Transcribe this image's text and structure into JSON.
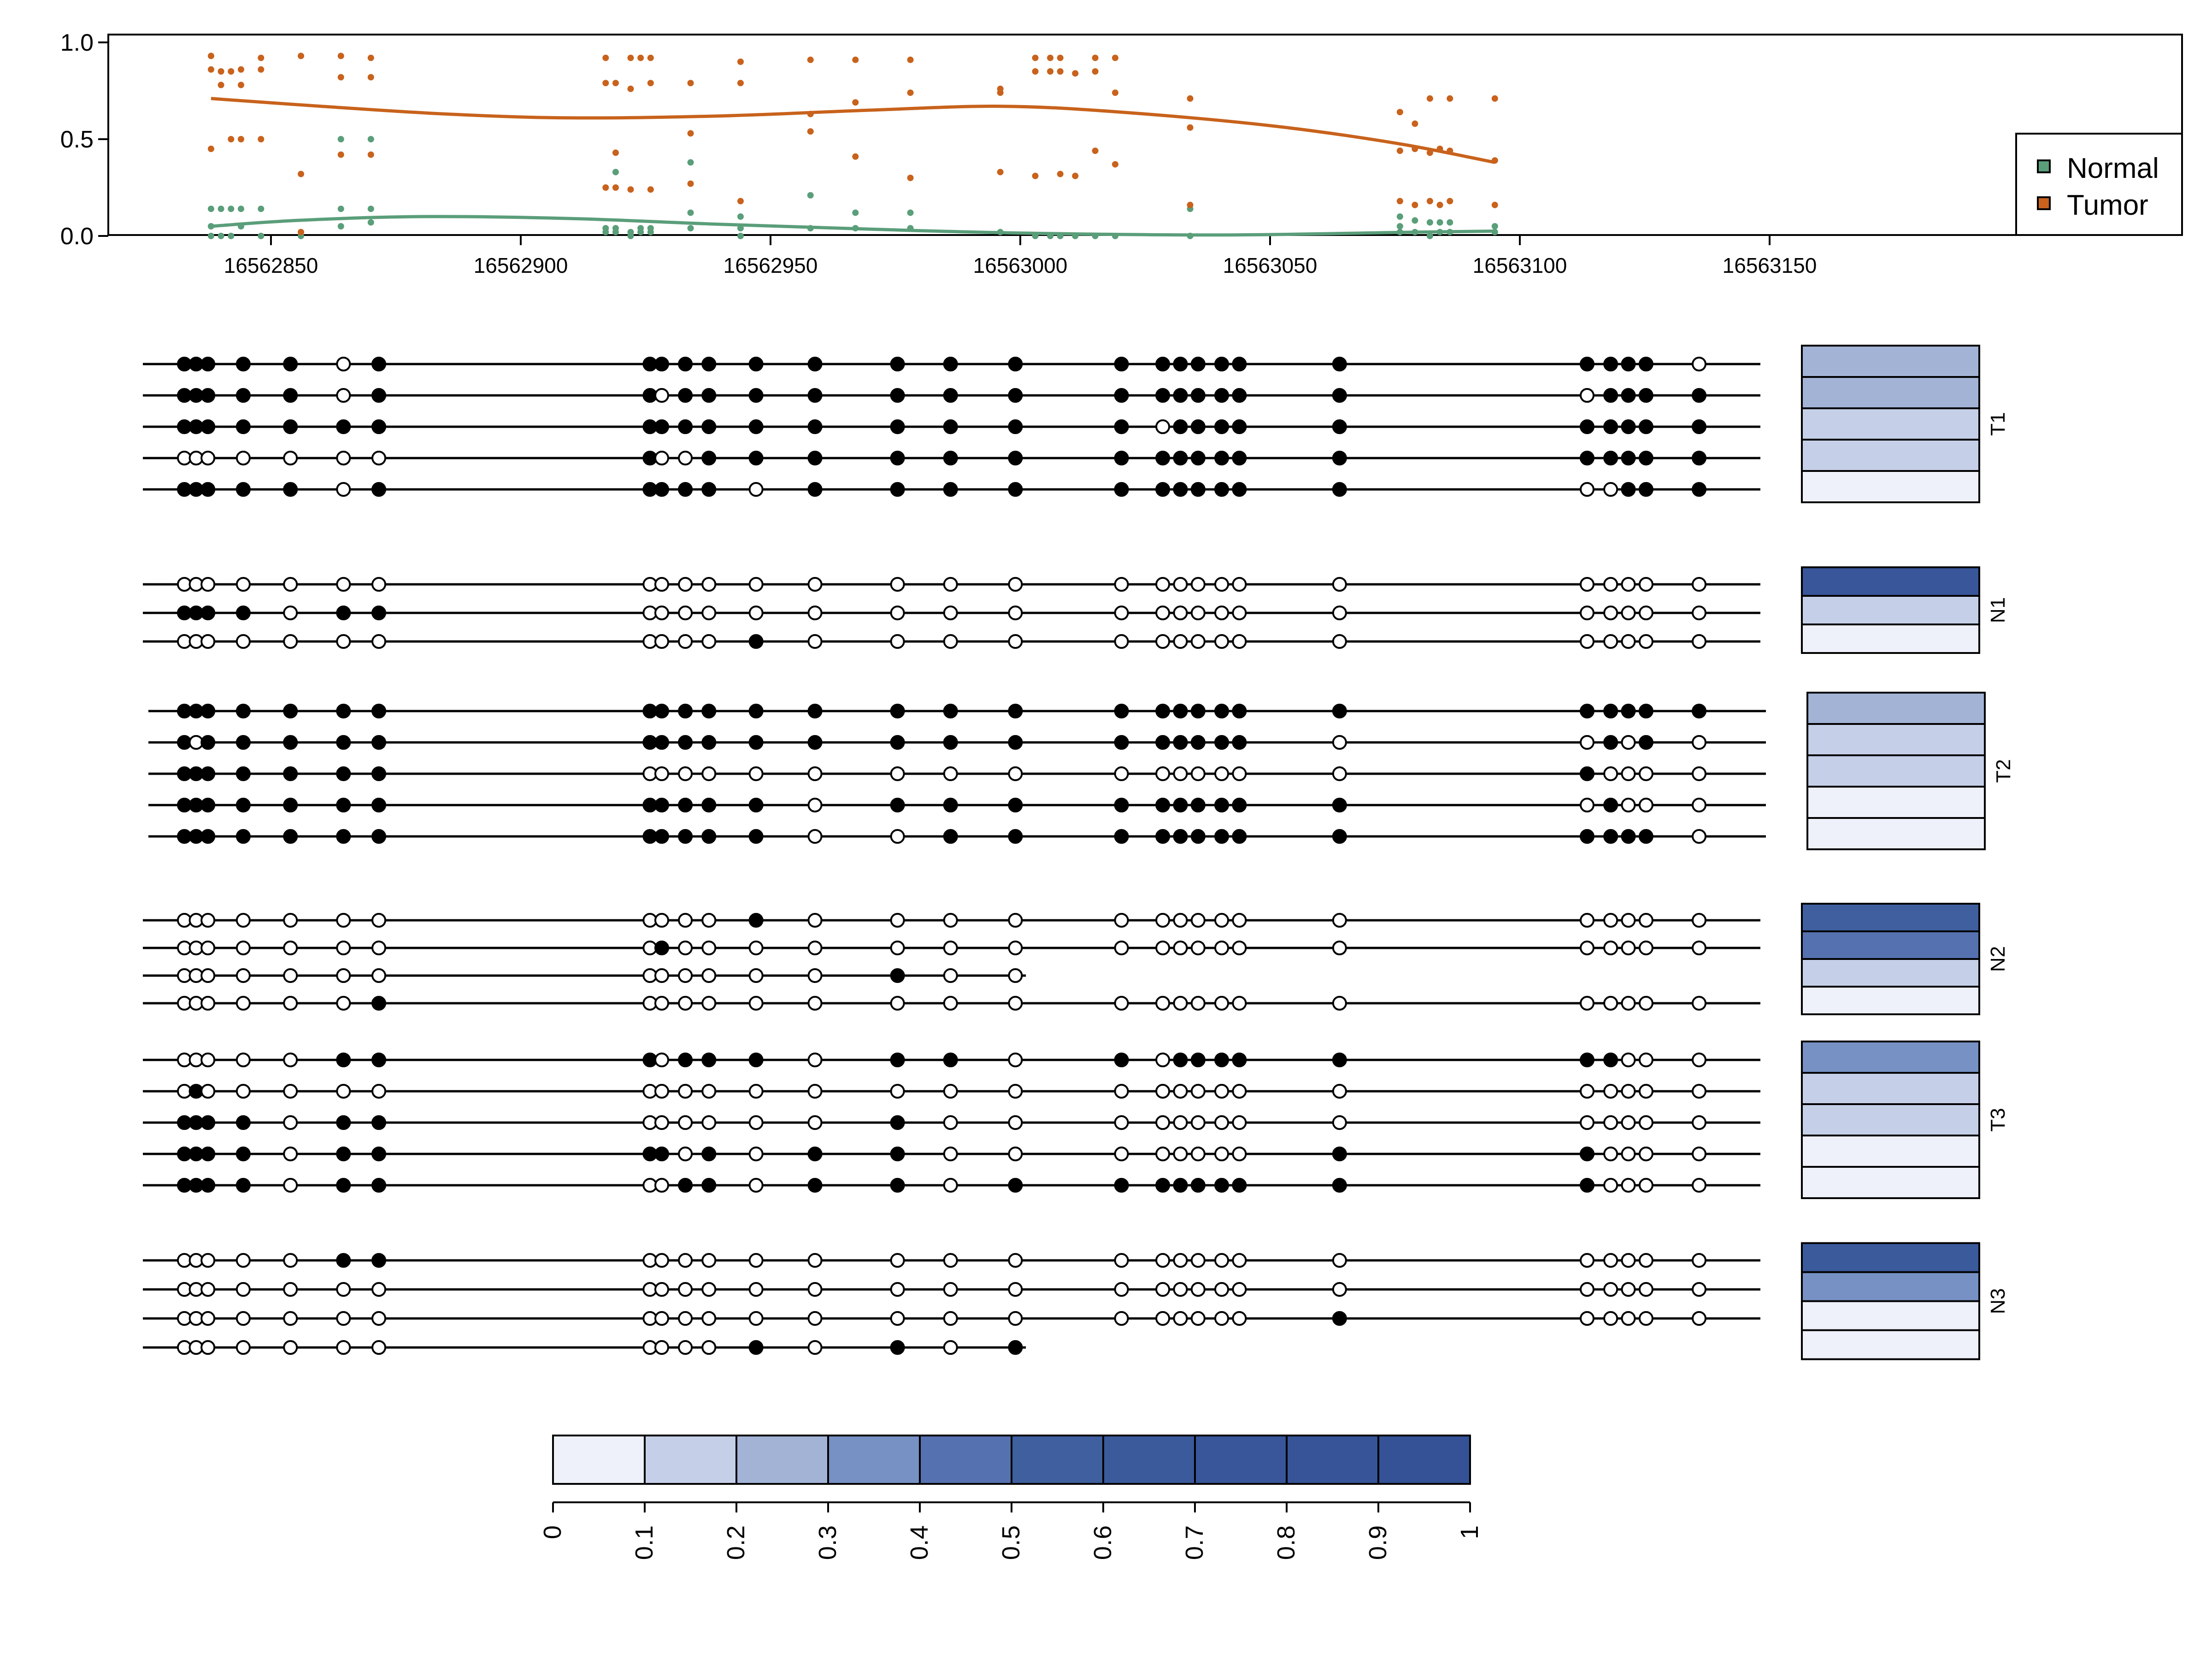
{
  "chart_data": {
    "type": "scatter",
    "description_note": "",
    "top_panel": {
      "xlim": [
        16562820,
        16563170
      ],
      "ylim": [
        0,
        1
      ],
      "xticks": [
        16562850,
        16562900,
        16562950,
        16563000,
        16563050,
        16563100,
        16563150
      ],
      "xtick_labels": [
        "16562850",
        "16562900",
        "16562950",
        "16563000",
        "16563050",
        "16563100",
        "16563150"
      ],
      "yticks": [
        0,
        0.5,
        1
      ],
      "ytick_labels": [
        "0.0",
        "0.5",
        "1.0"
      ],
      "legend_position": "right",
      "series": [
        {
          "name": "Normal",
          "color": "#5a9e7a",
          "points": [
            [
              16562838,
              0.14
            ],
            [
              16562838,
              0.05
            ],
            [
              16562838,
              0.0
            ],
            [
              16562840,
              0.14
            ],
            [
              16562840,
              0.0
            ],
            [
              16562842,
              0.14
            ],
            [
              16562842,
              0.0
            ],
            [
              16562844,
              0.14
            ],
            [
              16562844,
              0.05
            ],
            [
              16562848,
              0.14
            ],
            [
              16562848,
              0.0
            ],
            [
              16562856,
              0.0
            ],
            [
              16562864,
              0.5
            ],
            [
              16562864,
              0.14
            ],
            [
              16562864,
              0.05
            ],
            [
              16562870,
              0.5
            ],
            [
              16562870,
              0.14
            ],
            [
              16562870,
              0.07
            ],
            [
              16562917,
              0.04
            ],
            [
              16562917,
              0.02
            ],
            [
              16562919,
              0.33
            ],
            [
              16562919,
              0.04
            ],
            [
              16562919,
              0.02
            ],
            [
              16562922,
              0.02
            ],
            [
              16562922,
              0.0
            ],
            [
              16562924,
              0.04
            ],
            [
              16562924,
              0.02
            ],
            [
              16562926,
              0.04
            ],
            [
              16562926,
              0.02
            ],
            [
              16562934,
              0.38
            ],
            [
              16562934,
              0.12
            ],
            [
              16562934,
              0.04
            ],
            [
              16562944,
              0.1
            ],
            [
              16562944,
              0.04
            ],
            [
              16562944,
              0.0
            ],
            [
              16562958,
              0.21
            ],
            [
              16562958,
              0.04
            ],
            [
              16562967,
              0.12
            ],
            [
              16562967,
              0.04
            ],
            [
              16562978,
              0.12
            ],
            [
              16562978,
              0.04
            ],
            [
              16562996,
              0.02
            ],
            [
              16563003,
              0.0
            ],
            [
              16563006,
              0.0
            ],
            [
              16563008,
              0.0
            ],
            [
              16563011,
              0.0
            ],
            [
              16563015,
              0.0
            ],
            [
              16563019,
              0.0
            ],
            [
              16563034,
              0.14
            ],
            [
              16563034,
              0.0
            ],
            [
              16563076,
              0.1
            ],
            [
              16563076,
              0.05
            ],
            [
              16563076,
              0.02
            ],
            [
              16563079,
              0.08
            ],
            [
              16563079,
              0.02
            ],
            [
              16563082,
              0.07
            ],
            [
              16563082,
              0.0
            ],
            [
              16563084,
              0.07
            ],
            [
              16563084,
              0.02
            ],
            [
              16563086,
              0.07
            ],
            [
              16563086,
              0.02
            ],
            [
              16563095,
              0.05
            ],
            [
              16563095,
              0.02
            ]
          ],
          "smooth": [
            [
              16562838,
              0.05
            ],
            [
              16562855,
              0.08
            ],
            [
              16562880,
              0.1
            ],
            [
              16562910,
              0.09
            ],
            [
              16562940,
              0.06
            ],
            [
              16562970,
              0.035
            ],
            [
              16563000,
              0.015
            ],
            [
              16563040,
              0.005
            ],
            [
              16563080,
              0.02
            ],
            [
              16563095,
              0.025
            ]
          ]
        },
        {
          "name": "Tumor",
          "color": "#c8621c",
          "points": [
            [
              16562838,
              0.93
            ],
            [
              16562838,
              0.86
            ],
            [
              16562838,
              0.45
            ],
            [
              16562840,
              0.85
            ],
            [
              16562840,
              0.78
            ],
            [
              16562842,
              0.5
            ],
            [
              16562842,
              0.85
            ],
            [
              16562844,
              0.86
            ],
            [
              16562844,
              0.78
            ],
            [
              16562844,
              0.5
            ],
            [
              16562848,
              0.92
            ],
            [
              16562848,
              0.86
            ],
            [
              16562848,
              0.5
            ],
            [
              16562856,
              0.93
            ],
            [
              16562856,
              0.32
            ],
            [
              16562856,
              0.02
            ],
            [
              16562864,
              0.93
            ],
            [
              16562864,
              0.82
            ],
            [
              16562864,
              0.42
            ],
            [
              16562870,
              0.92
            ],
            [
              16562870,
              0.82
            ],
            [
              16562870,
              0.42
            ],
            [
              16562917,
              0.92
            ],
            [
              16562917,
              0.79
            ],
            [
              16562917,
              0.25
            ],
            [
              16562919,
              0.79
            ],
            [
              16562919,
              0.43
            ],
            [
              16562919,
              0.25
            ],
            [
              16562922,
              0.92
            ],
            [
              16562922,
              0.76
            ],
            [
              16562922,
              0.24
            ],
            [
              16562924,
              0.92
            ],
            [
              16562926,
              0.92
            ],
            [
              16562926,
              0.79
            ],
            [
              16562926,
              0.24
            ],
            [
              16562934,
              0.79
            ],
            [
              16562934,
              0.53
            ],
            [
              16562934,
              0.27
            ],
            [
              16562944,
              0.9
            ],
            [
              16562944,
              0.79
            ],
            [
              16562944,
              0.18
            ],
            [
              16562958,
              0.91
            ],
            [
              16562958,
              0.63
            ],
            [
              16562958,
              0.54
            ],
            [
              16562967,
              0.91
            ],
            [
              16562967,
              0.69
            ],
            [
              16562967,
              0.41
            ],
            [
              16562978,
              0.91
            ],
            [
              16562978,
              0.74
            ],
            [
              16562978,
              0.3
            ],
            [
              16562996,
              0.76
            ],
            [
              16562996,
              0.74
            ],
            [
              16562996,
              0.33
            ],
            [
              16563003,
              0.92
            ],
            [
              16563003,
              0.85
            ],
            [
              16563003,
              0.31
            ],
            [
              16563006,
              0.92
            ],
            [
              16563006,
              0.85
            ],
            [
              16563008,
              0.92
            ],
            [
              16563008,
              0.85
            ],
            [
              16563008,
              0.32
            ],
            [
              16563011,
              0.84
            ],
            [
              16563011,
              0.31
            ],
            [
              16563015,
              0.92
            ],
            [
              16563015,
              0.85
            ],
            [
              16563015,
              0.44
            ],
            [
              16563019,
              0.92
            ],
            [
              16563019,
              0.74
            ],
            [
              16563019,
              0.37
            ],
            [
              16563034,
              0.71
            ],
            [
              16563034,
              0.56
            ],
            [
              16563034,
              0.16
            ],
            [
              16563076,
              0.64
            ],
            [
              16563076,
              0.44
            ],
            [
              16563076,
              0.18
            ],
            [
              16563079,
              0.58
            ],
            [
              16563079,
              0.45
            ],
            [
              16563079,
              0.16
            ],
            [
              16563082,
              0.71
            ],
            [
              16563082,
              0.43
            ],
            [
              16563082,
              0.18
            ],
            [
              16563084,
              0.45
            ],
            [
              16563084,
              0.16
            ],
            [
              16563086,
              0.71
            ],
            [
              16563086,
              0.44
            ],
            [
              16563086,
              0.18
            ],
            [
              16563095,
              0.71
            ],
            [
              16563095,
              0.39
            ],
            [
              16563095,
              0.16
            ]
          ],
          "smooth": [
            [
              16562838,
              0.71
            ],
            [
              16562860,
              0.67
            ],
            [
              16562885,
              0.63
            ],
            [
              16562910,
              0.61
            ],
            [
              16562940,
              0.62
            ],
            [
              16562970,
              0.65
            ],
            [
              16562996,
              0.67
            ],
            [
              16563020,
              0.64
            ],
            [
              16563050,
              0.57
            ],
            [
              16563075,
              0.48
            ],
            [
              16563095,
              0.38
            ]
          ]
        }
      ]
    },
    "cpg_positions": [
      16562838,
      16562840,
      16562842,
      16562848,
      16562856,
      16562865,
      16562871,
      16562917,
      16562919,
      16562923,
      16562927,
      16562935,
      16562945,
      16562959,
      16562968,
      16562979,
      16562997,
      16563004,
      16563007,
      16563010,
      16563014,
      16563017,
      16563034,
      16563076,
      16563080,
      16563083,
      16563086,
      16563095
    ],
    "samples": [
      {
        "label": "T1",
        "reads": [
          "1111101111111111111111111110",
          "1111101101111111111111101111",
          "1111111111111111101111111111",
          "0000000100111111111111111111",
          "1111101111101111111111100111"
        ],
        "read_extents": [
          [
            16562830,
            16563105
          ],
          [
            16562830,
            16563105
          ],
          [
            16562830,
            16563105
          ],
          [
            16562830,
            16563105
          ],
          [
            16562830,
            16563105
          ]
        ],
        "cells": [
          0.25,
          0.25,
          0.15,
          0.15,
          0.05
        ]
      },
      {
        "label": "N1",
        "reads": [
          "0000000000000000000000000000",
          "1111011000000000000000000000",
          "0000000000010000000000000000"
        ],
        "read_extents": [
          [
            16562830,
            16563105
          ],
          [
            16562830,
            16563105
          ],
          [
            16562830,
            16563105
          ]
        ],
        "cells": [
          0.75,
          0.15,
          0.05
        ]
      },
      {
        "label": "T2",
        "reads": [
          "1111111111111111111111111111",
          "1011111111111111111111001010",
          "1111111000000000000000010000",
          "1111111111110111111111101000",
          "1111111111110011111111111110"
        ],
        "read_extents": [
          [
            16562830,
            16563105
          ],
          [
            16562830,
            16563105
          ],
          [
            16562830,
            16563105
          ],
          [
            16562830,
            16563105
          ],
          [
            16562830,
            16563105
          ]
        ],
        "cells": [
          0.25,
          0.15,
          0.15,
          0.05,
          0.05
        ]
      },
      {
        "label": "N2",
        "reads": [
          "0000000000010000000000000000",
          "0000000010000000000000000000",
          "0000000000000100000000000000",
          "0000001000000000000000000000"
        ],
        "read_extents": [
          [
            16562830,
            16563105
          ],
          [
            16562830,
            16563105
          ],
          [
            16562830,
            16562980
          ],
          [
            16562830,
            16563105
          ]
        ],
        "cells": [
          0.55,
          0.45,
          0.15,
          0.05
        ]
      },
      {
        "label": "T3",
        "reads": [
          "0000011101110110101111111000",
          "0100000000000000000000000000",
          "1111011000000100000000000000",
          "1111011110101100000000110000",
          "1111011001101101111111110000"
        ],
        "read_extents": [
          [
            16562830,
            16563105
          ],
          [
            16562830,
            16563105
          ],
          [
            16562830,
            16563105
          ],
          [
            16562830,
            16563105
          ],
          [
            16562830,
            16563105
          ]
        ],
        "cells": [
          0.35,
          0.15,
          0.15,
          0.05,
          0.05
        ]
      },
      {
        "label": "N3",
        "reads": [
          "0000011000000000000000000000",
          "0000000000000000000000000000",
          "0000000000000000000000100000",
          "0000000000010101000000000000"
        ],
        "read_extents": [
          [
            16562830,
            16563105
          ],
          [
            16562830,
            16563105
          ],
          [
            16562830,
            16563105
          ],
          [
            16562830,
            16562980
          ]
        ],
        "cells": [
          0.65,
          0.35,
          0.05,
          0.05
        ]
      }
    ],
    "colorbar": {
      "ticks": [
        "0",
        "0.1",
        "0.2",
        "0.3",
        "0.4",
        "0.5",
        "0.6",
        "0.7",
        "0.8",
        "0.9",
        "1"
      ],
      "colors": [
        "#eef0fa",
        "#c5cfe8",
        "#a2b3d6",
        "#7791c4",
        "#5671b0",
        "#3f5f9e",
        "#3b5a9c",
        "#385699",
        "#365497",
        "#345295"
      ]
    },
    "legend": [
      "Normal",
      "Tumor"
    ],
    "colors": {
      "normal": "#5a9e7a",
      "tumor": "#c8621c",
      "methylated": "#000000",
      "unmethylated": "#ffffff"
    }
  }
}
